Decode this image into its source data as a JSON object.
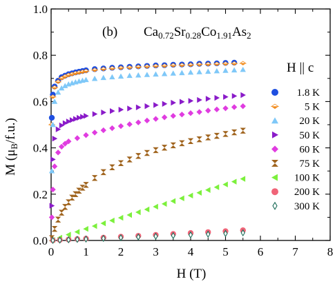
{
  "chart_data": {
    "type": "scatter",
    "panel_label": "(b)",
    "formula": {
      "parts": [
        {
          "text": "Ca",
          "sub": false
        },
        {
          "text": "0.72",
          "sub": true
        },
        {
          "text": "Sr",
          "sub": false
        },
        {
          "text": "0.28",
          "sub": true
        },
        {
          "text": "Co",
          "sub": false
        },
        {
          "text": "1.91",
          "sub": true
        },
        {
          "text": "As",
          "sub": false
        },
        {
          "text": "2",
          "sub": true
        }
      ]
    },
    "xlabel": "H (T)",
    "ylabel": {
      "parts": [
        {
          "text": "M (μ",
          "sub": false
        },
        {
          "text": "B",
          "sub": true
        },
        {
          "text": "/f.u.)",
          "sub": false
        }
      ]
    },
    "xlim": [
      0,
      8
    ],
    "ylim": [
      0,
      1.0
    ],
    "xticks": [
      0,
      1,
      2,
      3,
      4,
      5,
      6,
      7,
      8
    ],
    "xtick_labels": [
      "0",
      "1",
      "2",
      "3",
      "4",
      "5",
      "6",
      "7",
      "8"
    ],
    "yticks": [
      0,
      0.2,
      0.4,
      0.6,
      0.8,
      1.0
    ],
    "ytick_labels": [
      "0.0",
      "0.2",
      "0.4",
      "0.6",
      "0.8",
      "1.0"
    ],
    "grid": false,
    "legend_title": "H || c",
    "legend_position": "right",
    "series": [
      {
        "name": "1.8 K",
        "marker": "circle",
        "color": "#1f4fe0",
        "x": [
          0.02,
          0.05,
          0.1,
          0.2,
          0.3,
          0.4,
          0.5,
          0.6,
          0.7,
          0.8,
          0.9,
          1.0,
          1.25,
          1.5,
          1.75,
          2.0,
          2.25,
          2.5,
          2.75,
          3.0,
          3.25,
          3.5,
          3.75,
          4.0,
          4.25,
          4.5,
          4.75,
          5.0,
          5.25
        ],
        "y": [
          0.53,
          0.63,
          0.665,
          0.69,
          0.705,
          0.712,
          0.718,
          0.722,
          0.726,
          0.729,
          0.732,
          0.735,
          0.74,
          0.743,
          0.746,
          0.748,
          0.75,
          0.752,
          0.754,
          0.756,
          0.757,
          0.759,
          0.76,
          0.761,
          0.763,
          0.764,
          0.765,
          0.767,
          0.768
        ]
      },
      {
        "name": "5 K",
        "marker": "diamond-half",
        "color": "#f28c1e",
        "x": [
          0.02,
          0.05,
          0.1,
          0.2,
          0.3,
          0.4,
          0.5,
          0.6,
          0.7,
          0.8,
          0.9,
          1.0,
          1.25,
          1.5,
          1.75,
          2.0,
          2.25,
          2.5,
          2.75,
          3.0,
          3.25,
          3.5,
          3.75,
          4.0,
          4.25,
          4.5,
          4.75,
          5.0,
          5.25,
          5.5
        ],
        "y": [
          0.5,
          0.62,
          0.66,
          0.685,
          0.7,
          0.708,
          0.714,
          0.718,
          0.722,
          0.725,
          0.728,
          0.731,
          0.736,
          0.74,
          0.743,
          0.745,
          0.747,
          0.749,
          0.751,
          0.753,
          0.754,
          0.756,
          0.757,
          0.758,
          0.76,
          0.761,
          0.762,
          0.763,
          0.764,
          0.765
        ]
      },
      {
        "name": "20 K",
        "marker": "triangle-up",
        "color": "#7fc8f8",
        "x": [
          0.02,
          0.05,
          0.1,
          0.2,
          0.3,
          0.4,
          0.5,
          0.6,
          0.7,
          0.8,
          0.9,
          1.0,
          1.25,
          1.5,
          1.75,
          2.0,
          2.25,
          2.5,
          2.75,
          3.0,
          3.25,
          3.5,
          3.75,
          4.0,
          4.25,
          4.5,
          4.75,
          5.0,
          5.25,
          5.5
        ],
        "y": [
          0.3,
          0.5,
          0.6,
          0.64,
          0.658,
          0.668,
          0.675,
          0.68,
          0.684,
          0.688,
          0.691,
          0.694,
          0.699,
          0.703,
          0.706,
          0.709,
          0.712,
          0.714,
          0.716,
          0.718,
          0.72,
          0.722,
          0.724,
          0.726,
          0.728,
          0.73,
          0.732,
          0.734,
          0.736,
          0.738
        ]
      },
      {
        "name": "50 K",
        "marker": "triangle-right",
        "color": "#8a1bc9",
        "x": [
          0.02,
          0.05,
          0.1,
          0.2,
          0.3,
          0.4,
          0.5,
          0.6,
          0.7,
          0.8,
          0.9,
          1.0,
          1.25,
          1.5,
          1.75,
          2.0,
          2.25,
          2.5,
          2.75,
          3.0,
          3.25,
          3.5,
          3.75,
          4.0,
          4.25,
          4.5,
          4.75,
          5.0,
          5.25,
          5.5
        ],
        "y": [
          0.15,
          0.35,
          0.44,
          0.48,
          0.497,
          0.507,
          0.514,
          0.52,
          0.525,
          0.53,
          0.534,
          0.538,
          0.546,
          0.553,
          0.559,
          0.565,
          0.57,
          0.575,
          0.58,
          0.585,
          0.59,
          0.595,
          0.599,
          0.603,
          0.607,
          0.612,
          0.616,
          0.62,
          0.624,
          0.628
        ]
      },
      {
        "name": "60 K",
        "marker": "diamond",
        "color": "#e03ce0",
        "x": [
          0.02,
          0.05,
          0.1,
          0.2,
          0.3,
          0.4,
          0.5,
          0.75,
          1.0,
          1.25,
          1.5,
          1.75,
          2.0,
          2.25,
          2.5,
          2.75,
          3.0,
          3.25,
          3.5,
          3.75,
          4.0,
          4.25,
          4.5,
          4.75,
          5.0,
          5.25,
          5.5
        ],
        "y": [
          0.1,
          0.22,
          0.32,
          0.38,
          0.405,
          0.418,
          0.428,
          0.442,
          0.455,
          0.466,
          0.476,
          0.485,
          0.494,
          0.502,
          0.51,
          0.518,
          0.525,
          0.532,
          0.538,
          0.544,
          0.55,
          0.555,
          0.561,
          0.566,
          0.571,
          0.576,
          0.58
        ]
      },
      {
        "name": "75 K",
        "marker": "hourglass",
        "color": "#a0641e",
        "x": [
          0.02,
          0.1,
          0.2,
          0.3,
          0.4,
          0.5,
          0.6,
          0.7,
          0.8,
          0.9,
          1.0,
          1.25,
          1.5,
          1.75,
          2.0,
          2.25,
          2.5,
          2.75,
          3.0,
          3.25,
          3.5,
          3.75,
          4.0,
          4.25,
          4.5,
          4.75,
          5.0,
          5.25,
          5.5
        ],
        "y": [
          0.01,
          0.05,
          0.09,
          0.12,
          0.145,
          0.165,
          0.185,
          0.2,
          0.215,
          0.228,
          0.24,
          0.27,
          0.295,
          0.316,
          0.334,
          0.35,
          0.365,
          0.378,
          0.39,
          0.401,
          0.411,
          0.42,
          0.429,
          0.437,
          0.445,
          0.452,
          0.46,
          0.467,
          0.474
        ]
      },
      {
        "name": "100 K",
        "marker": "triangle-left",
        "color": "#7cf03c",
        "x": [
          0.05,
          0.25,
          0.5,
          0.75,
          1.0,
          1.25,
          1.5,
          1.75,
          2.0,
          2.25,
          2.5,
          2.75,
          3.0,
          3.25,
          3.5,
          3.75,
          4.0,
          4.25,
          4.5,
          4.75,
          5.0,
          5.25,
          5.5
        ],
        "y": [
          0.002,
          0.012,
          0.025,
          0.037,
          0.05,
          0.062,
          0.074,
          0.086,
          0.098,
          0.11,
          0.122,
          0.134,
          0.146,
          0.158,
          0.17,
          0.182,
          0.194,
          0.206,
          0.218,
          0.23,
          0.242,
          0.254,
          0.266
        ]
      },
      {
        "name": "200 K",
        "marker": "circle",
        "color": "#f06478",
        "x": [
          0.05,
          0.25,
          0.5,
          0.75,
          1.0,
          1.5,
          2.0,
          2.5,
          3.0,
          3.5,
          4.0,
          4.5,
          5.0,
          5.5
        ],
        "y": [
          0.0005,
          0.002,
          0.004,
          0.006,
          0.008,
          0.012,
          0.016,
          0.02,
          0.024,
          0.028,
          0.032,
          0.036,
          0.04,
          0.044
        ]
      },
      {
        "name": "300 K",
        "marker": "diamond-open",
        "color": "#1e6e5a",
        "x": [
          0.05,
          0.25,
          0.5,
          0.75,
          1.0,
          1.5,
          2.0,
          2.5,
          3.0,
          3.5,
          4.0,
          4.5,
          5.0,
          5.5
        ],
        "y": [
          0.0003,
          0.0015,
          0.003,
          0.0045,
          0.006,
          0.009,
          0.012,
          0.015,
          0.018,
          0.021,
          0.024,
          0.027,
          0.03,
          0.033
        ]
      }
    ]
  }
}
